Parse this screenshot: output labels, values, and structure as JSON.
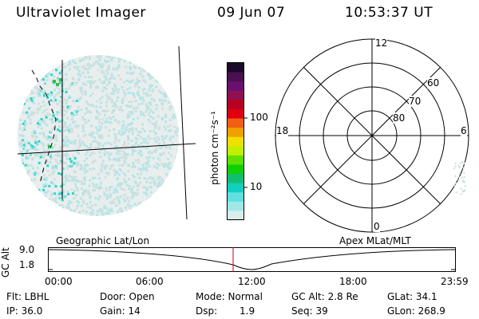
{
  "header": {
    "title": "Ultraviolet Imager",
    "date": "09 Jun 07",
    "time": "10:53:37 UT"
  },
  "colorbar": {
    "label": "photon cm⁻²s⁻¹",
    "ticks": [
      "100",
      "10"
    ],
    "colors": [
      "#1a0a2a",
      "#4a1050",
      "#6a1070",
      "#901050",
      "#b80020",
      "#e00010",
      "#f06010",
      "#f0a000",
      "#f0e000",
      "#c0f000",
      "#60e000",
      "#10d000",
      "#10c070",
      "#10d0c0",
      "#60e0e0",
      "#a0e8e8",
      "#d8ecec"
    ]
  },
  "polar": {
    "mlt_labels": {
      "top": "12",
      "left": "18",
      "right": "6",
      "bottom": "0"
    },
    "lat_labels": [
      "60",
      "70",
      "80"
    ]
  },
  "altitude_plot": {
    "axis_title": "GC Alt",
    "left_caption": "Geographic Lat/Lon",
    "right_caption": "Apex MLat/MLT",
    "y_ticks": [
      "9.0",
      "1.8"
    ],
    "x_ticks": [
      "00:00",
      "06:00",
      "12:00",
      "18:00",
      "23:59"
    ],
    "marker_fraction": 0.4539,
    "marker_color": "#cc0000"
  },
  "info": {
    "flt": "Flt: LBHL",
    "ip": "IP: 36.0",
    "door": "Door: Open",
    "gain": "Gain: 14",
    "mode": "Mode: Normal",
    "dsp_label": "Dsp:",
    "dsp_value": "1.9",
    "gcalt": "GC Alt: 2.8 Re",
    "seq": "Seq: 39",
    "glat": "GLat:  34.1",
    "glon": "GLon: 268.9"
  }
}
